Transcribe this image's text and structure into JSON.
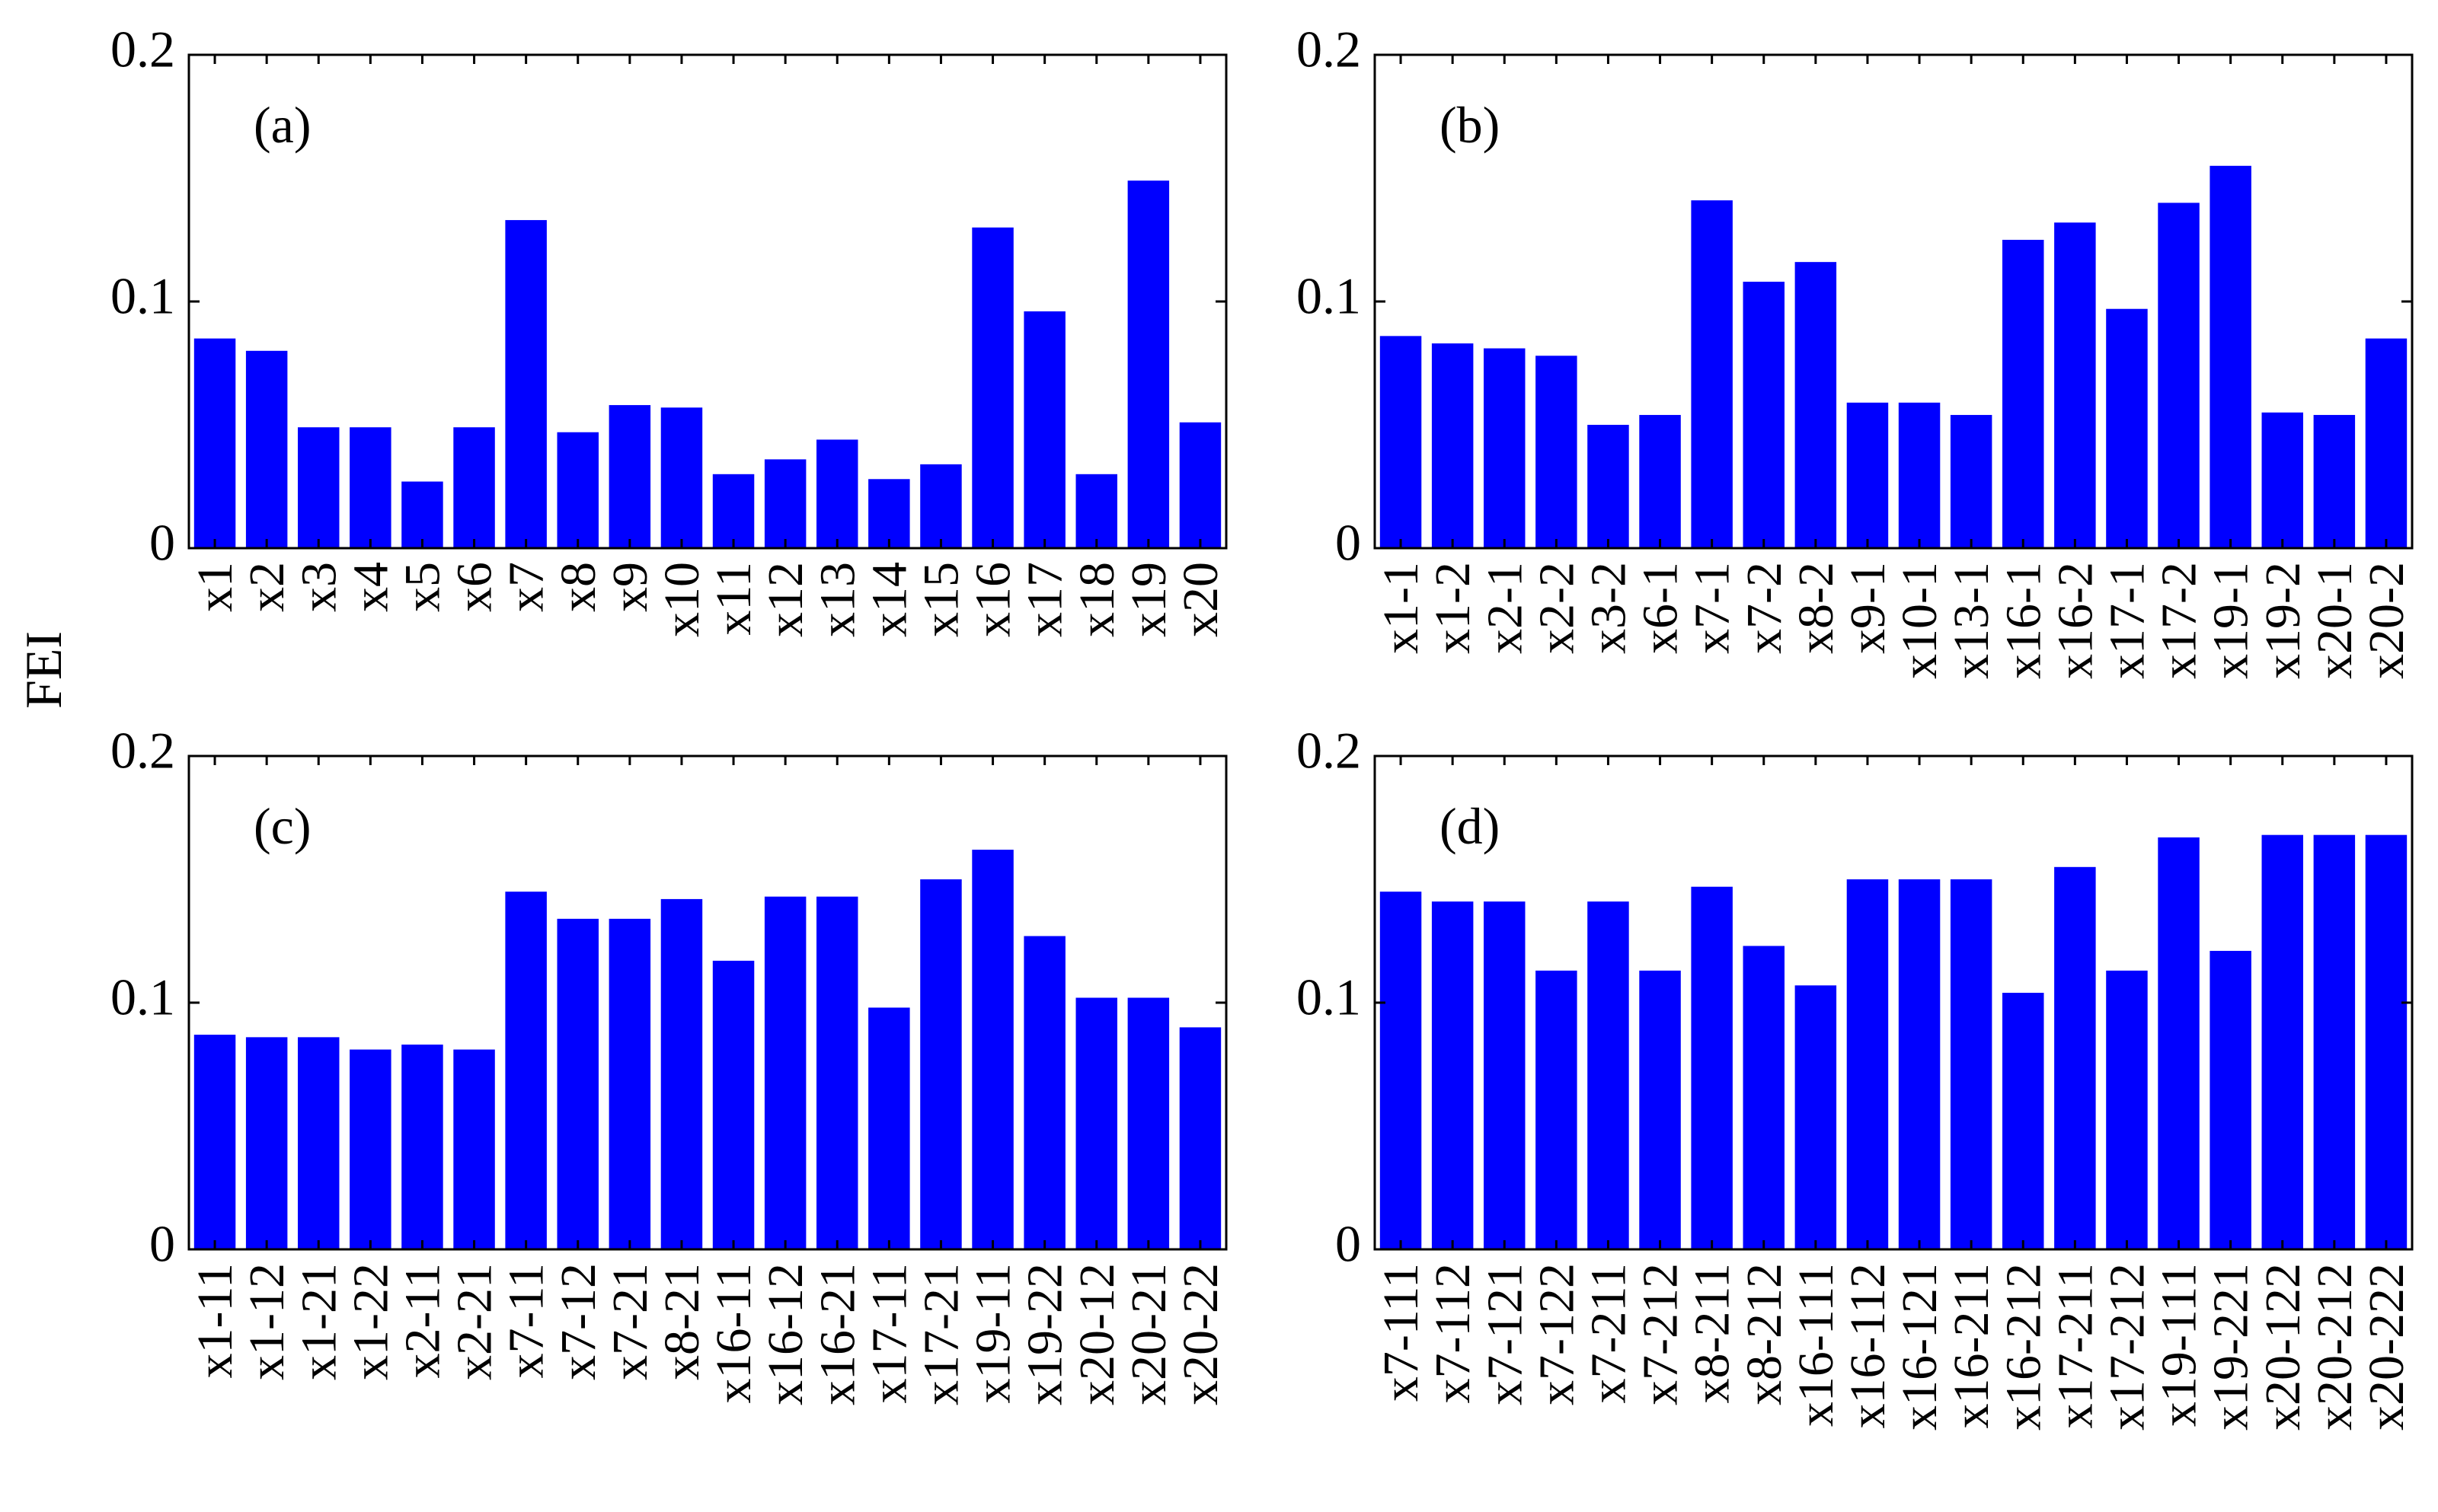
{
  "figure": {
    "ylabel": "FEI"
  },
  "colors": {
    "bar": "#0000ff",
    "axis": "#000000",
    "background": "#ffffff"
  },
  "chart_data": [
    {
      "type": "bar",
      "title": "",
      "panel_label": "(a)",
      "xlabel": "",
      "ylabel": "FEI",
      "ylim": [
        0,
        0.2
      ],
      "yticks": [
        0,
        0.1,
        0.2
      ],
      "ytick_labels": [
        "0",
        "0.1",
        "0.2"
      ],
      "categories": [
        "x1",
        "x2",
        "x3",
        "x4",
        "x5",
        "x6",
        "x7",
        "x8",
        "x9",
        "x10",
        "x11",
        "x12",
        "x13",
        "x14",
        "x15",
        "x16",
        "x17",
        "x18",
        "x19",
        "x20"
      ],
      "values": [
        0.085,
        0.08,
        0.049,
        0.049,
        0.027,
        0.049,
        0.133,
        0.047,
        0.058,
        0.057,
        0.03,
        0.036,
        0.044,
        0.028,
        0.034,
        0.13,
        0.096,
        0.03,
        0.149,
        0.051
      ]
    },
    {
      "type": "bar",
      "title": "",
      "panel_label": "(b)",
      "xlabel": "",
      "ylabel": "",
      "ylim": [
        0,
        0.2
      ],
      "yticks": [
        0,
        0.1,
        0.2
      ],
      "ytick_labels": [
        "0",
        "0.1",
        "0.2"
      ],
      "categories": [
        "x1-1",
        "x1-2",
        "x2-1",
        "x2-2",
        "x3-2",
        "x6-1",
        "x7-1",
        "x7-2",
        "x8-2",
        "x9-1",
        "x10-1",
        "x13-1",
        "x16-1",
        "x16-2",
        "x17-1",
        "x17-2",
        "x19-1",
        "x19-2",
        "x20-1",
        "x20-2"
      ],
      "values": [
        0.086,
        0.083,
        0.081,
        0.078,
        0.05,
        0.054,
        0.141,
        0.108,
        0.116,
        0.059,
        0.059,
        0.054,
        0.125,
        0.132,
        0.097,
        0.14,
        0.155,
        0.055,
        0.054,
        0.085
      ]
    },
    {
      "type": "bar",
      "title": "",
      "panel_label": "(c)",
      "xlabel": "",
      "ylabel": "",
      "ylim": [
        0,
        0.2
      ],
      "yticks": [
        0,
        0.1,
        0.2
      ],
      "ytick_labels": [
        "0",
        "0.1",
        "0.2"
      ],
      "categories": [
        "x1-11",
        "x1-12",
        "x1-21",
        "x1-22",
        "x2-11",
        "x2-21",
        "x7-11",
        "x7-12",
        "x7-21",
        "x8-21",
        "x16-11",
        "x16-12",
        "x16-21",
        "x17-11",
        "x17-21",
        "x19-11",
        "x19-22",
        "x20-12",
        "x20-21",
        "x20-22"
      ],
      "values": [
        0.087,
        0.086,
        0.086,
        0.081,
        0.083,
        0.081,
        0.145,
        0.134,
        0.134,
        0.142,
        0.117,
        0.143,
        0.143,
        0.098,
        0.15,
        0.162,
        0.127,
        0.102,
        0.102,
        0.09
      ]
    },
    {
      "type": "bar",
      "title": "",
      "panel_label": "(d)",
      "xlabel": "",
      "ylabel": "",
      "ylim": [
        0,
        0.2
      ],
      "yticks": [
        0,
        0.1,
        0.2
      ],
      "ytick_labels": [
        "0",
        "0.1",
        "0.2"
      ],
      "categories": [
        "x7-111",
        "x7-112",
        "x7-121",
        "x7-122",
        "x7-211",
        "x7-212",
        "x8-211",
        "x8-212",
        "x16-111",
        "x16-112",
        "x16-121",
        "x16-211",
        "x16-212",
        "x17-211",
        "x17-212",
        "x19-111",
        "x19-221",
        "x20-122",
        "x20-212",
        "x20-222"
      ],
      "values": [
        0.145,
        0.141,
        0.141,
        0.113,
        0.141,
        0.113,
        0.147,
        0.123,
        0.107,
        0.15,
        0.15,
        0.15,
        0.104,
        0.155,
        0.113,
        0.167,
        0.121,
        0.168,
        0.168,
        0.168
      ]
    }
  ]
}
